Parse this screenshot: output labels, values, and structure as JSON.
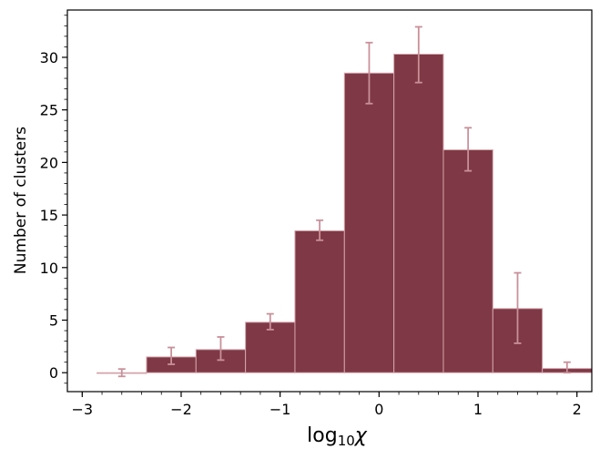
{
  "chart_data": {
    "type": "bar",
    "title": "",
    "xlabel": "log10χ",
    "ylabel": "Number of clusters",
    "xlim": [
      -3.15,
      2.15
    ],
    "ylim": [
      -1.8,
      34.5
    ],
    "x_ticks": [
      -3,
      -2,
      -1,
      0,
      1,
      2
    ],
    "x_tick_labels": [
      "−3",
      "−2",
      "−1",
      "0",
      "1",
      "2"
    ],
    "y_ticks": [
      0,
      5,
      10,
      15,
      20,
      25,
      30
    ],
    "y_tick_labels": [
      "0",
      "5",
      "10",
      "15",
      "20",
      "25",
      "30"
    ],
    "grid": false,
    "bin_width": 0.5,
    "bins": [
      {
        "x_left": -2.85,
        "value": 0.0,
        "err_low": 0.35,
        "err_high": 0.35
      },
      {
        "x_left": -2.35,
        "value": 1.5,
        "err_low": 0.7,
        "err_high": 0.9
      },
      {
        "x_left": -1.85,
        "value": 2.2,
        "err_low": 1.0,
        "err_high": 1.2
      },
      {
        "x_left": -1.35,
        "value": 4.8,
        "err_low": 0.7,
        "err_high": 0.8
      },
      {
        "x_left": -0.85,
        "value": 13.5,
        "err_low": 0.9,
        "err_high": 1.0
      },
      {
        "x_left": -0.35,
        "value": 28.5,
        "err_low": 2.9,
        "err_high": 2.9
      },
      {
        "x_left": 0.15,
        "value": 30.3,
        "err_low": 2.7,
        "err_high": 2.6
      },
      {
        "x_left": 0.65,
        "value": 21.2,
        "err_low": 2.0,
        "err_high": 2.1
      },
      {
        "x_left": 1.15,
        "value": 6.1,
        "err_low": 3.3,
        "err_high": 3.4
      },
      {
        "x_left": 1.65,
        "value": 0.4,
        "err_low": 0.4,
        "err_high": 0.6
      }
    ],
    "colors": {
      "bar_fill": "#7f3845",
      "bar_edge": "#d4a5ad",
      "error_bar": "#c9909a",
      "axis": "#000000"
    }
  }
}
